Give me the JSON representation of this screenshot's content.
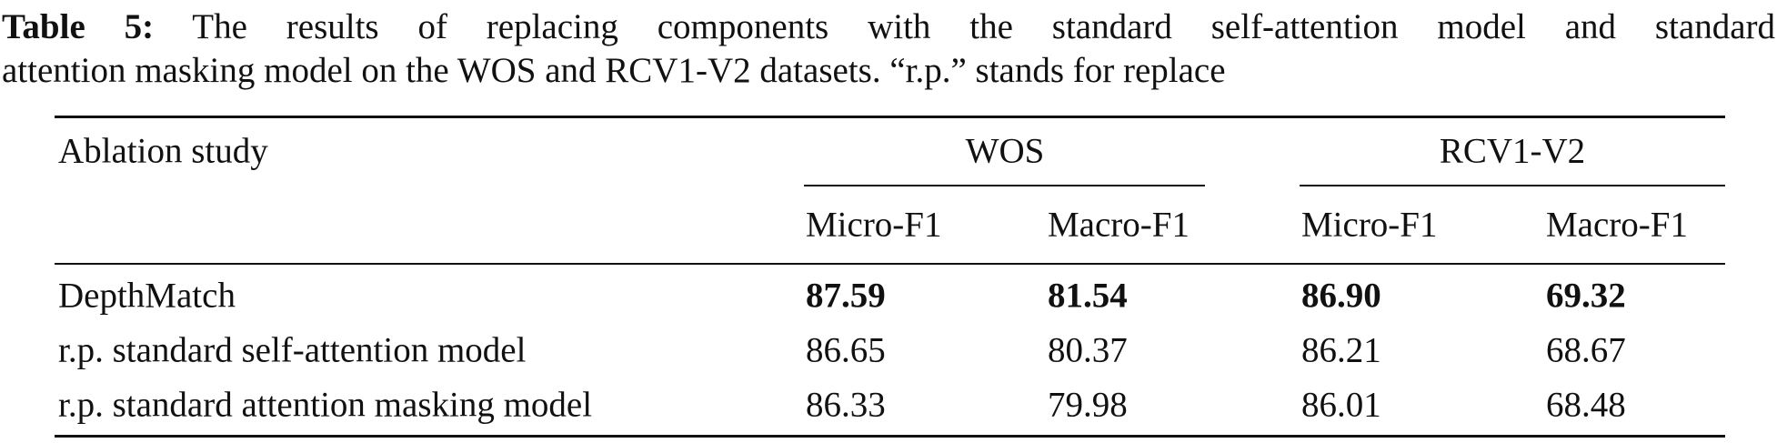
{
  "caption": {
    "label": "Table 5:",
    "lines": [
      "The results of replacing components with the standard self-attention model and standard",
      "attention masking model on the WOS and RCV1-V2 datasets. “r.p.” stands for replace"
    ]
  },
  "table": {
    "row_header": "Ablation study",
    "groups": [
      "WOS",
      "RCV1-V2"
    ],
    "subheaders": [
      "Micro-F1",
      "Macro-F1",
      "Micro-F1",
      "Macro-F1"
    ],
    "rows": [
      {
        "label": "DepthMatch",
        "cells": [
          "87.59",
          "81.54",
          "86.90",
          "69.32"
        ],
        "bold": true
      },
      {
        "label": "r.p. standard self-attention model",
        "cells": [
          "86.65",
          "80.37",
          "86.21",
          "68.67"
        ],
        "bold": false
      },
      {
        "label": "r.p. standard attention masking model",
        "cells": [
          "86.33",
          "79.98",
          "86.01",
          "68.48"
        ],
        "bold": false
      }
    ]
  }
}
